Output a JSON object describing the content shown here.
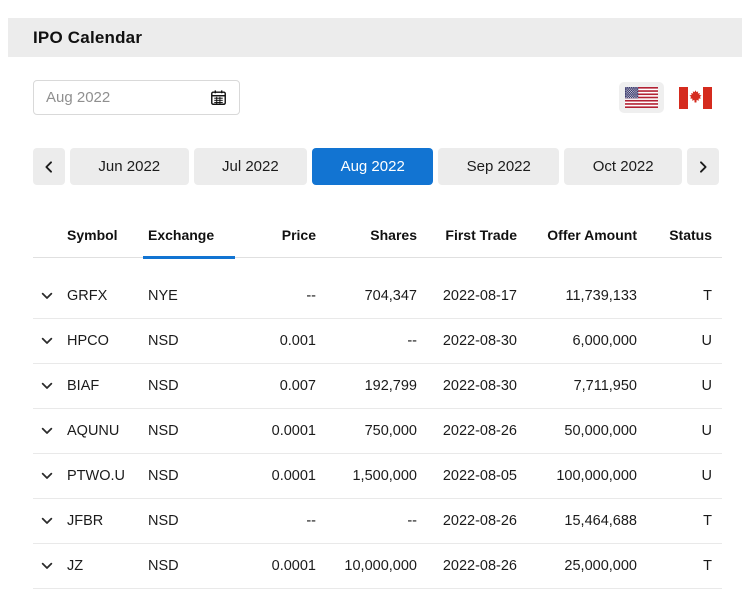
{
  "header": {
    "title": "IPO Calendar"
  },
  "controls": {
    "month_input": {
      "value": "Aug 2022"
    },
    "region_flags": [
      {
        "id": "united-states",
        "selected": true
      },
      {
        "id": "canada",
        "selected": false
      }
    ]
  },
  "month_tabs": [
    "Jun 2022",
    "Jul 2022",
    "Aug 2022",
    "Sep 2022",
    "Oct 2022"
  ],
  "selected_tab": "Aug 2022",
  "colors": {
    "accent": "#1274d2",
    "tab_bg": "#ececec",
    "us_flag_red": "#b22234",
    "us_flag_blue": "#3c3b6e",
    "canada_flag_red": "#d52b1e"
  },
  "table": {
    "columns": [
      "Symbol",
      "Exchange",
      "Price",
      "Shares",
      "First Trade",
      "Offer Amount",
      "Status"
    ],
    "underlined_column": "Exchange",
    "rows": [
      {
        "symbol": "GRFX",
        "exchange": "NYE",
        "price": "--",
        "shares": "704,347",
        "first_trade": "2022-08-17",
        "offer_amount": "11,739,133",
        "status": "T"
      },
      {
        "symbol": "HPCO",
        "exchange": "NSD",
        "price": "0.001",
        "shares": "--",
        "first_trade": "2022-08-30",
        "offer_amount": "6,000,000",
        "status": "U"
      },
      {
        "symbol": "BIAF",
        "exchange": "NSD",
        "price": "0.007",
        "shares": "192,799",
        "first_trade": "2022-08-30",
        "offer_amount": "7,711,950",
        "status": "U"
      },
      {
        "symbol": "AQUNU",
        "exchange": "NSD",
        "price": "0.0001",
        "shares": "750,000",
        "first_trade": "2022-08-26",
        "offer_amount": "50,000,000",
        "status": "U"
      },
      {
        "symbol": "PTWO.U",
        "exchange": "NSD",
        "price": "0.0001",
        "shares": "1,500,000",
        "first_trade": "2022-08-05",
        "offer_amount": "100,000,000",
        "status": "U"
      },
      {
        "symbol": "JFBR",
        "exchange": "NSD",
        "price": "--",
        "shares": "--",
        "first_trade": "2022-08-26",
        "offer_amount": "15,464,688",
        "status": "T"
      },
      {
        "symbol": "JZ",
        "exchange": "NSD",
        "price": "0.0001",
        "shares": "10,000,000",
        "first_trade": "2022-08-26",
        "offer_amount": "25,000,000",
        "status": "T"
      }
    ]
  }
}
